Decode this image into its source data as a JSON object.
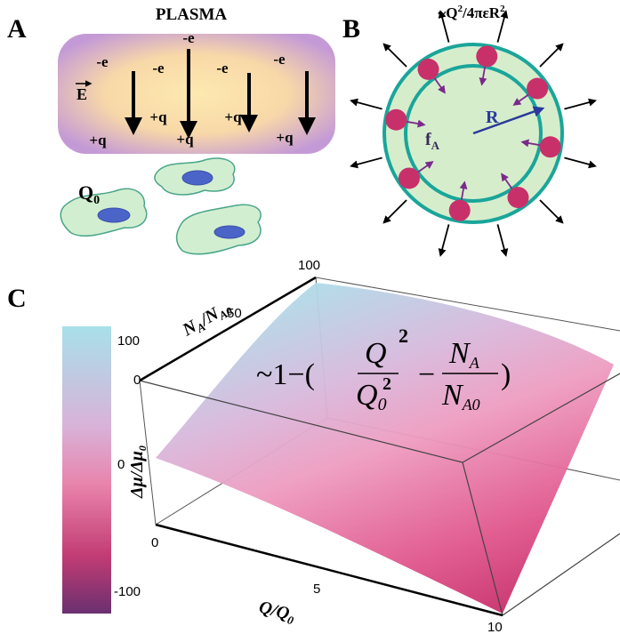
{
  "panel_a": {
    "label": "A",
    "title": "PLASMA",
    "electron_charges": [
      "-e",
      "-e",
      "-e",
      "-e",
      "-e"
    ],
    "ion_charges": [
      "+q",
      "+q",
      "+q",
      "+q",
      "+q"
    ],
    "field_label": "E",
    "cell_charge": {
      "symbol": "Q",
      "sub": "0"
    }
  },
  "panel_b": {
    "label": "B",
    "pressure": {
      "prefix": "~Q",
      "sup": "2",
      "rest": "/4πεR",
      "sup2": "2"
    },
    "force": {
      "symbol": "f",
      "sub": "A"
    },
    "radius": "R"
  },
  "panel_c": {
    "label": "C",
    "colorbar": {
      "ticks": [
        100,
        0,
        -100
      ],
      "label": {
        "main": "Δμ/Δμ",
        "sub": "0"
      }
    },
    "depth_axis": {
      "label": {
        "n1": "N",
        "s1": "A",
        "n2": "/N",
        "s2": "A0"
      },
      "ticks": [
        0,
        50,
        100
      ]
    },
    "x_axis": {
      "label": {
        "main": "Q/Q",
        "sub": "0"
      },
      "ticks": [
        0,
        5,
        10
      ]
    },
    "formula": {
      "prefix": "~1−(",
      "num1": "Q",
      "num1_sup": "2",
      "den1": "Q",
      "den1_sub": "0",
      "den1_sup": "2",
      "minus": "−",
      "num2": "N",
      "num2_sub": "A",
      "den2": "N",
      "den2_sub": "A0",
      "close": ")"
    }
  }
}
